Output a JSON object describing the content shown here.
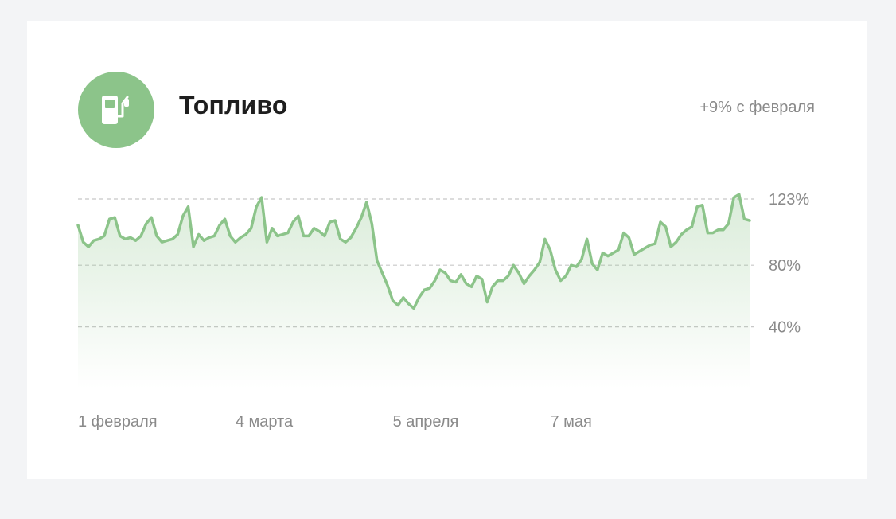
{
  "card": {
    "title": "Топливо",
    "change_text": "+9% с февраля",
    "icon": "fuel-pump-icon",
    "accent_color": "#8cc48a"
  },
  "chart_data": {
    "type": "area",
    "title": "Топливо",
    "xlabel": "",
    "ylabel": "",
    "ylim": [
      0,
      123
    ],
    "y_ticks": [
      {
        "value": 123,
        "label": "123%"
      },
      {
        "value": 80,
        "label": "80%"
      },
      {
        "value": 40,
        "label": "40%"
      }
    ],
    "x_ticks": [
      {
        "index": 0,
        "label": "1 февраля"
      },
      {
        "index": 30,
        "label": "4 марта"
      },
      {
        "index": 60,
        "label": "5 апреля"
      },
      {
        "index": 90,
        "label": "7 мая"
      }
    ],
    "grid": "horizontal-dashed",
    "line_color": "#8cc48a",
    "series": [
      {
        "values": [
          106,
          95,
          92,
          96,
          97,
          99,
          110,
          111,
          99,
          97,
          98,
          96,
          99,
          107,
          111,
          99,
          95,
          96,
          97,
          100,
          112,
          118,
          92,
          100,
          96,
          98,
          99,
          106,
          110,
          99,
          95,
          98,
          100,
          104,
          118,
          124,
          95,
          104,
          99,
          100,
          101,
          108,
          112,
          99,
          99,
          104,
          102,
          99,
          108,
          109,
          97,
          95,
          98,
          104,
          111,
          121,
          107,
          83,
          75,
          67,
          57,
          54,
          59,
          55,
          52,
          59,
          64,
          65,
          70,
          77,
          75,
          70,
          69,
          74,
          68,
          66,
          73,
          71,
          56,
          66,
          70,
          70,
          73,
          80,
          75,
          68,
          73,
          77,
          82,
          97,
          90,
          77,
          70,
          73,
          80,
          79,
          84,
          97,
          81,
          77,
          88,
          86,
          88,
          90,
          101,
          98,
          87,
          89,
          91,
          93,
          94,
          108,
          105,
          92,
          95,
          100,
          103,
          105,
          118,
          119,
          101,
          101,
          103,
          103,
          107,
          124,
          126,
          110,
          109
        ]
      }
    ]
  }
}
